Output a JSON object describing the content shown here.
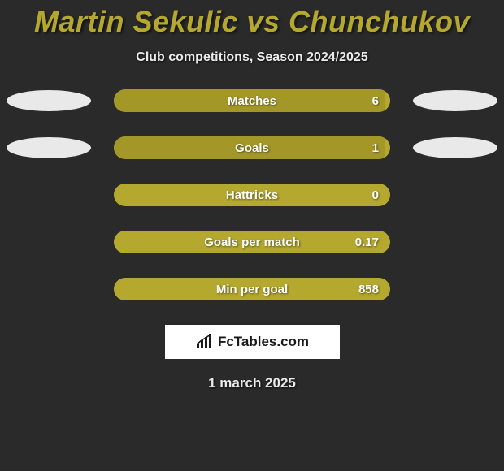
{
  "title": "Martin Sekulic vs Chunchukov",
  "subtitle": "Club competitions, Season 2024/2025",
  "colors": {
    "background": "#2a2a2a",
    "accent": "#b5a82f",
    "accent_dark": "#a39728",
    "lozenge": "#e9e9e9",
    "text_light": "#ffffff",
    "text_sub": "#eaeaea",
    "logo_bg": "#ffffff",
    "logo_text": "#1a1a1a"
  },
  "bars": [
    {
      "label": "Matches",
      "value": "6",
      "fill_pct": 98,
      "lozenge_left": true,
      "lozenge_right": true
    },
    {
      "label": "Goals",
      "value": "1",
      "fill_pct": 98,
      "lozenge_left": true,
      "lozenge_right": true
    },
    {
      "label": "Hattricks",
      "value": "0",
      "fill_pct": 0,
      "lozenge_left": false,
      "lozenge_right": false
    },
    {
      "label": "Goals per match",
      "value": "0.17",
      "fill_pct": 0,
      "lozenge_left": false,
      "lozenge_right": false
    },
    {
      "label": "Min per goal",
      "value": "858",
      "fill_pct": 0,
      "lozenge_left": false,
      "lozenge_right": false
    }
  ],
  "logo": "FcTables.com",
  "date": "1 march 2025"
}
